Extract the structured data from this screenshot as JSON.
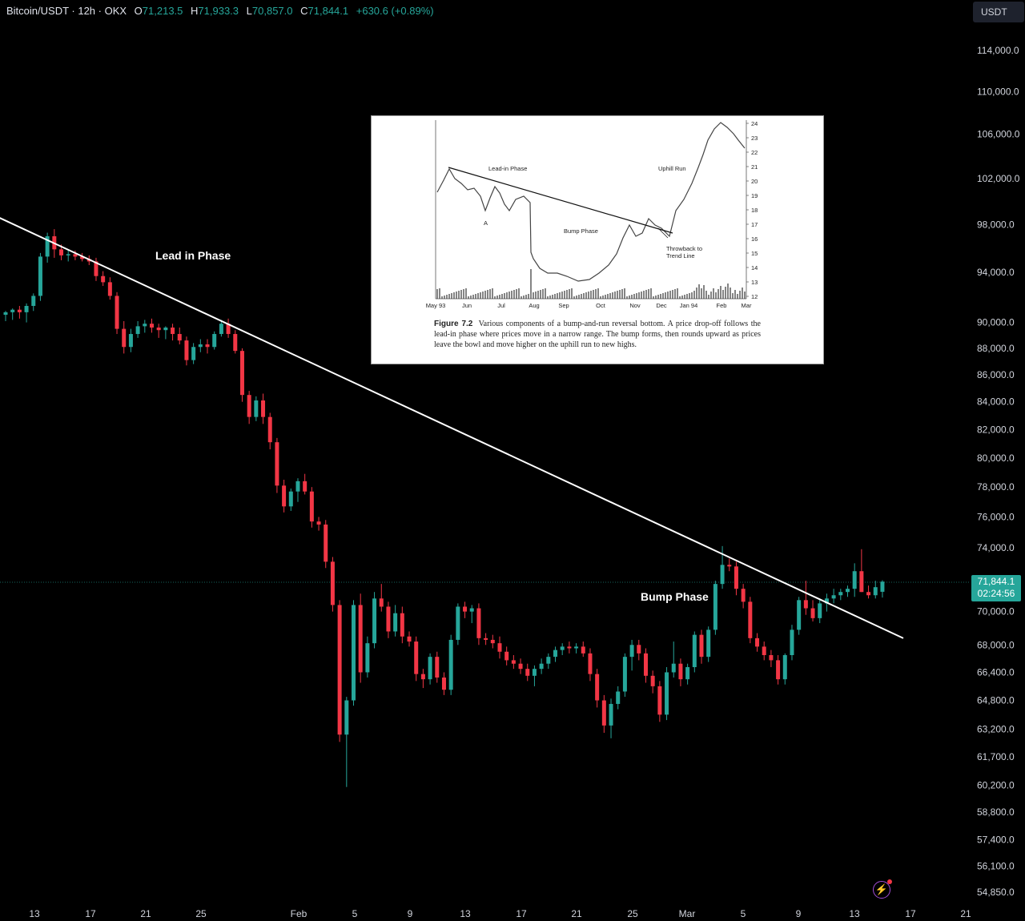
{
  "header": {
    "symbol": "Bitcoin/USDT · 12h · OKX",
    "open_label": "O",
    "open": "71,213.5",
    "high_label": "H",
    "high": "71,933.3",
    "low_label": "L",
    "low": "70,857.0",
    "close_label": "C",
    "close": "71,844.1",
    "change": "+630.6 (+0.89%)"
  },
  "currency": "USDT",
  "last_price": "71,844.1",
  "countdown": "02:24:56",
  "colors": {
    "up": "#26a69a",
    "down": "#f23645",
    "background": "#000000",
    "trendline": "#ffffff"
  },
  "chart_data": {
    "type": "candlestick",
    "series_name": "Bitcoin/USDT",
    "timeframe": "12h",
    "y_scale": "log",
    "y_ticks": [
      "114,000.0",
      "110,000.0",
      "106,000.0",
      "102,000.0",
      "98,000.0",
      "94,000.0",
      "90,000.0",
      "88,000.0",
      "86,000.0",
      "84,000.0",
      "82,000.0",
      "80,000.0",
      "78,000.0",
      "76,000.0",
      "74,000.0",
      "70,000.0",
      "68,000.0",
      "66,400.0",
      "64,800.0",
      "63,200.0",
      "61,700.0",
      "60,200.0",
      "58,800.0",
      "57,400.0",
      "56,100.0",
      "54,850.0"
    ],
    "x_ticks": [
      "13",
      "17",
      "21",
      "25",
      "Feb",
      "5",
      "9",
      "13",
      "17",
      "21",
      "25",
      "Mar",
      "5",
      "9",
      "13",
      "17",
      "21"
    ],
    "candles": [
      {
        "o": 90600,
        "h": 90900,
        "l": 90100,
        "c": 90800
      },
      {
        "o": 90800,
        "h": 91100,
        "l": 90200,
        "c": 91000
      },
      {
        "o": 91000,
        "h": 91300,
        "l": 90300,
        "c": 90800
      },
      {
        "o": 90800,
        "h": 91500,
        "l": 90000,
        "c": 91300
      },
      {
        "o": 91300,
        "h": 92300,
        "l": 90900,
        "c": 92100
      },
      {
        "o": 92100,
        "h": 95600,
        "l": 91700,
        "c": 95300
      },
      {
        "o": 95300,
        "h": 97300,
        "l": 94800,
        "c": 97000
      },
      {
        "o": 97000,
        "h": 97600,
        "l": 95200,
        "c": 95900
      },
      {
        "o": 95900,
        "h": 96300,
        "l": 95000,
        "c": 95400
      },
      {
        "o": 95400,
        "h": 95900,
        "l": 94900,
        "c": 95500
      },
      {
        "o": 95500,
        "h": 95800,
        "l": 95000,
        "c": 95300
      },
      {
        "o": 95300,
        "h": 95600,
        "l": 94900,
        "c": 95100
      },
      {
        "o": 95100,
        "h": 95400,
        "l": 94600,
        "c": 94900
      },
      {
        "o": 94900,
        "h": 95200,
        "l": 93300,
        "c": 93700
      },
      {
        "o": 93700,
        "h": 94100,
        "l": 92900,
        "c": 93200
      },
      {
        "o": 93200,
        "h": 93600,
        "l": 91800,
        "c": 92100
      },
      {
        "o": 92100,
        "h": 92400,
        "l": 89100,
        "c": 89500
      },
      {
        "o": 89500,
        "h": 90100,
        "l": 87600,
        "c": 88100
      },
      {
        "o": 88100,
        "h": 89500,
        "l": 87700,
        "c": 89100
      },
      {
        "o": 89100,
        "h": 90100,
        "l": 88800,
        "c": 89700
      },
      {
        "o": 89700,
        "h": 90200,
        "l": 89200,
        "c": 89900
      },
      {
        "o": 89900,
        "h": 90300,
        "l": 89200,
        "c": 89600
      },
      {
        "o": 89600,
        "h": 89900,
        "l": 88800,
        "c": 89400
      },
      {
        "o": 89400,
        "h": 89700,
        "l": 88700,
        "c": 89600
      },
      {
        "o": 89600,
        "h": 89900,
        "l": 88600,
        "c": 89100
      },
      {
        "o": 89100,
        "h": 89600,
        "l": 88300,
        "c": 88600
      },
      {
        "o": 88600,
        "h": 88900,
        "l": 86700,
        "c": 87100
      },
      {
        "o": 87100,
        "h": 88400,
        "l": 86800,
        "c": 88100
      },
      {
        "o": 88100,
        "h": 88700,
        "l": 87700,
        "c": 88300
      },
      {
        "o": 88300,
        "h": 88700,
        "l": 87600,
        "c": 88100
      },
      {
        "o": 88100,
        "h": 89300,
        "l": 87900,
        "c": 89100
      },
      {
        "o": 89100,
        "h": 90200,
        "l": 88900,
        "c": 89900
      },
      {
        "o": 89900,
        "h": 90300,
        "l": 88800,
        "c": 89100
      },
      {
        "o": 89100,
        "h": 89400,
        "l": 87600,
        "c": 87800
      },
      {
        "o": 87800,
        "h": 88000,
        "l": 84000,
        "c": 84500
      },
      {
        "o": 84500,
        "h": 84800,
        "l": 82400,
        "c": 82900
      },
      {
        "o": 82900,
        "h": 84400,
        "l": 82600,
        "c": 84100
      },
      {
        "o": 84100,
        "h": 84600,
        "l": 82400,
        "c": 82900
      },
      {
        "o": 82900,
        "h": 83200,
        "l": 80600,
        "c": 81100
      },
      {
        "o": 81100,
        "h": 81400,
        "l": 77600,
        "c": 78100
      },
      {
        "o": 78100,
        "h": 78500,
        "l": 76300,
        "c": 76700
      },
      {
        "o": 76700,
        "h": 77900,
        "l": 76400,
        "c": 77700
      },
      {
        "o": 77700,
        "h": 78600,
        "l": 77000,
        "c": 78400
      },
      {
        "o": 78400,
        "h": 78900,
        "l": 77500,
        "c": 77700
      },
      {
        "o": 77700,
        "h": 78000,
        "l": 75300,
        "c": 75700
      },
      {
        "o": 75700,
        "h": 76000,
        "l": 75100,
        "c": 75500
      },
      {
        "o": 75500,
        "h": 75800,
        "l": 72700,
        "c": 73100
      },
      {
        "o": 73100,
        "h": 73400,
        "l": 70000,
        "c": 70400
      },
      {
        "o": 70400,
        "h": 70700,
        "l": 62500,
        "c": 62900
      },
      {
        "o": 62900,
        "h": 65000,
        "l": 60100,
        "c": 64800
      },
      {
        "o": 64800,
        "h": 70700,
        "l": 64500,
        "c": 70400
      },
      {
        "o": 70400,
        "h": 71100,
        "l": 65800,
        "c": 66400
      },
      {
        "o": 66400,
        "h": 68500,
        "l": 66100,
        "c": 68100
      },
      {
        "o": 68100,
        "h": 71200,
        "l": 67800,
        "c": 70800
      },
      {
        "o": 70800,
        "h": 71700,
        "l": 70000,
        "c": 70300
      },
      {
        "o": 70300,
        "h": 70600,
        "l": 68400,
        "c": 68800
      },
      {
        "o": 68800,
        "h": 70400,
        "l": 68500,
        "c": 69900
      },
      {
        "o": 69900,
        "h": 70300,
        "l": 68100,
        "c": 68500
      },
      {
        "o": 68500,
        "h": 68800,
        "l": 67900,
        "c": 68200
      },
      {
        "o": 68200,
        "h": 68500,
        "l": 65900,
        "c": 66300
      },
      {
        "o": 66300,
        "h": 66600,
        "l": 65500,
        "c": 66000
      },
      {
        "o": 66000,
        "h": 67500,
        "l": 65700,
        "c": 67300
      },
      {
        "o": 67300,
        "h": 67600,
        "l": 65800,
        "c": 66100
      },
      {
        "o": 66100,
        "h": 66400,
        "l": 65100,
        "c": 65400
      },
      {
        "o": 65400,
        "h": 68600,
        "l": 65100,
        "c": 68300
      },
      {
        "o": 68300,
        "h": 70500,
        "l": 68000,
        "c": 70300
      },
      {
        "o": 70300,
        "h": 70600,
        "l": 69600,
        "c": 70000
      },
      {
        "o": 70000,
        "h": 70400,
        "l": 69300,
        "c": 70200
      },
      {
        "o": 70200,
        "h": 70500,
        "l": 68000,
        "c": 68400
      },
      {
        "o": 68400,
        "h": 68700,
        "l": 68000,
        "c": 68300
      },
      {
        "o": 68300,
        "h": 68600,
        "l": 67800,
        "c": 68100
      },
      {
        "o": 68100,
        "h": 68500,
        "l": 67200,
        "c": 67600
      },
      {
        "o": 67600,
        "h": 67900,
        "l": 66800,
        "c": 67100
      },
      {
        "o": 67100,
        "h": 67400,
        "l": 66600,
        "c": 66900
      },
      {
        "o": 66900,
        "h": 67200,
        "l": 66300,
        "c": 66600
      },
      {
        "o": 66600,
        "h": 66900,
        "l": 65900,
        "c": 66200
      },
      {
        "o": 66200,
        "h": 66800,
        "l": 65600,
        "c": 66600
      },
      {
        "o": 66600,
        "h": 67200,
        "l": 66300,
        "c": 66900
      },
      {
        "o": 66900,
        "h": 67500,
        "l": 66600,
        "c": 67300
      },
      {
        "o": 67300,
        "h": 67900,
        "l": 67000,
        "c": 67700
      },
      {
        "o": 67700,
        "h": 68100,
        "l": 67400,
        "c": 67900
      },
      {
        "o": 67900,
        "h": 68200,
        "l": 67500,
        "c": 67800
      },
      {
        "o": 67800,
        "h": 68100,
        "l": 67500,
        "c": 67900
      },
      {
        "o": 67900,
        "h": 68200,
        "l": 67300,
        "c": 67500
      },
      {
        "o": 67500,
        "h": 67800,
        "l": 65900,
        "c": 66300
      },
      {
        "o": 66300,
        "h": 66600,
        "l": 64400,
        "c": 64800
      },
      {
        "o": 64800,
        "h": 65100,
        "l": 63000,
        "c": 63400
      },
      {
        "o": 63400,
        "h": 64900,
        "l": 62700,
        "c": 64600
      },
      {
        "o": 64600,
        "h": 65600,
        "l": 64300,
        "c": 65300
      },
      {
        "o": 65300,
        "h": 67500,
        "l": 65000,
        "c": 67300
      },
      {
        "o": 67300,
        "h": 68300,
        "l": 66500,
        "c": 68000
      },
      {
        "o": 68000,
        "h": 68300,
        "l": 67100,
        "c": 67500
      },
      {
        "o": 67500,
        "h": 67800,
        "l": 65800,
        "c": 66200
      },
      {
        "o": 66200,
        "h": 66500,
        "l": 65200,
        "c": 65600
      },
      {
        "o": 65600,
        "h": 65900,
        "l": 63600,
        "c": 64000
      },
      {
        "o": 64000,
        "h": 66700,
        "l": 63700,
        "c": 66400
      },
      {
        "o": 66400,
        "h": 68200,
        "l": 66100,
        "c": 66900
      },
      {
        "o": 66900,
        "h": 67200,
        "l": 65600,
        "c": 66000
      },
      {
        "o": 66000,
        "h": 66900,
        "l": 65700,
        "c": 66700
      },
      {
        "o": 66700,
        "h": 68800,
        "l": 66400,
        "c": 68600
      },
      {
        "o": 68600,
        "h": 68900,
        "l": 66900,
        "c": 67300
      },
      {
        "o": 67300,
        "h": 69100,
        "l": 67000,
        "c": 68900
      },
      {
        "o": 68900,
        "h": 71900,
        "l": 68600,
        "c": 71700
      },
      {
        "o": 71700,
        "h": 74100,
        "l": 71400,
        "c": 72900
      },
      {
        "o": 72900,
        "h": 73300,
        "l": 72500,
        "c": 72800
      },
      {
        "o": 72800,
        "h": 73100,
        "l": 71000,
        "c": 71400
      },
      {
        "o": 71400,
        "h": 71700,
        "l": 70200,
        "c": 70600
      },
      {
        "o": 70600,
        "h": 70900,
        "l": 68100,
        "c": 68400
      },
      {
        "o": 68400,
        "h": 68700,
        "l": 67600,
        "c": 67900
      },
      {
        "o": 67900,
        "h": 68200,
        "l": 67100,
        "c": 67400
      },
      {
        "o": 67400,
        "h": 67700,
        "l": 66700,
        "c": 67100
      },
      {
        "o": 67100,
        "h": 67400,
        "l": 65700,
        "c": 66000
      },
      {
        "o": 66000,
        "h": 67500,
        "l": 65700,
        "c": 67400
      },
      {
        "o": 67400,
        "h": 69200,
        "l": 67100,
        "c": 68900
      },
      {
        "o": 68900,
        "h": 70900,
        "l": 68600,
        "c": 70700
      },
      {
        "o": 70700,
        "h": 71900,
        "l": 69800,
        "c": 70200
      },
      {
        "o": 70200,
        "h": 70700,
        "l": 69400,
        "c": 69600
      },
      {
        "o": 69600,
        "h": 70800,
        "l": 69300,
        "c": 70500
      },
      {
        "o": 70500,
        "h": 71100,
        "l": 70000,
        "c": 70800
      },
      {
        "o": 70800,
        "h": 71400,
        "l": 70500,
        "c": 71000
      },
      {
        "o": 71000,
        "h": 71400,
        "l": 70700,
        "c": 71200
      },
      {
        "o": 71200,
        "h": 71600,
        "l": 70900,
        "c": 71400
      },
      {
        "o": 71400,
        "h": 73000,
        "l": 70900,
        "c": 72500
      },
      {
        "o": 72500,
        "h": 73900,
        "l": 71200,
        "c": 71200
      },
      {
        "o": 71200,
        "h": 71600,
        "l": 70800,
        "c": 71000
      },
      {
        "o": 71000,
        "h": 71900,
        "l": 70800,
        "c": 71500
      },
      {
        "o": 71213.5,
        "h": 71933.3,
        "l": 70857.0,
        "c": 71844.1
      }
    ],
    "trendline": {
      "start": {
        "candle_index": -1,
        "price": 98600
      },
      "end": {
        "candle_index": 129,
        "price": 68400
      }
    },
    "annotations": [
      "Lead in Phase",
      "Bump Phase"
    ]
  },
  "inset": {
    "phase_labels": {
      "lead_in": "Lead-in Phase",
      "uphill": "Uphill Run",
      "bump": "Bump Phase",
      "throwback_1": "Throwback to",
      "throwback_2": "Trend Line",
      "point_a": "A"
    },
    "y_ticks": [
      "24",
      "23",
      "22",
      "21",
      "20",
      "19",
      "18",
      "17",
      "16",
      "15",
      "14",
      "13",
      "12"
    ],
    "x_ticks": [
      "May 93",
      "Jun",
      "Jul",
      "Aug",
      "Sep",
      "Oct",
      "Nov",
      "Dec",
      "Jan 94",
      "Feb",
      "Mar"
    ],
    "caption_title": "Figure 7.2",
    "caption_text": "Various components of a bump-and-run reversal bottom. A price drop-off follows the lead-in phase where prices move in a narrow range. The bump forms, then rounds upward as prices leave the bowl and move higher on the uphill run to new highs."
  }
}
